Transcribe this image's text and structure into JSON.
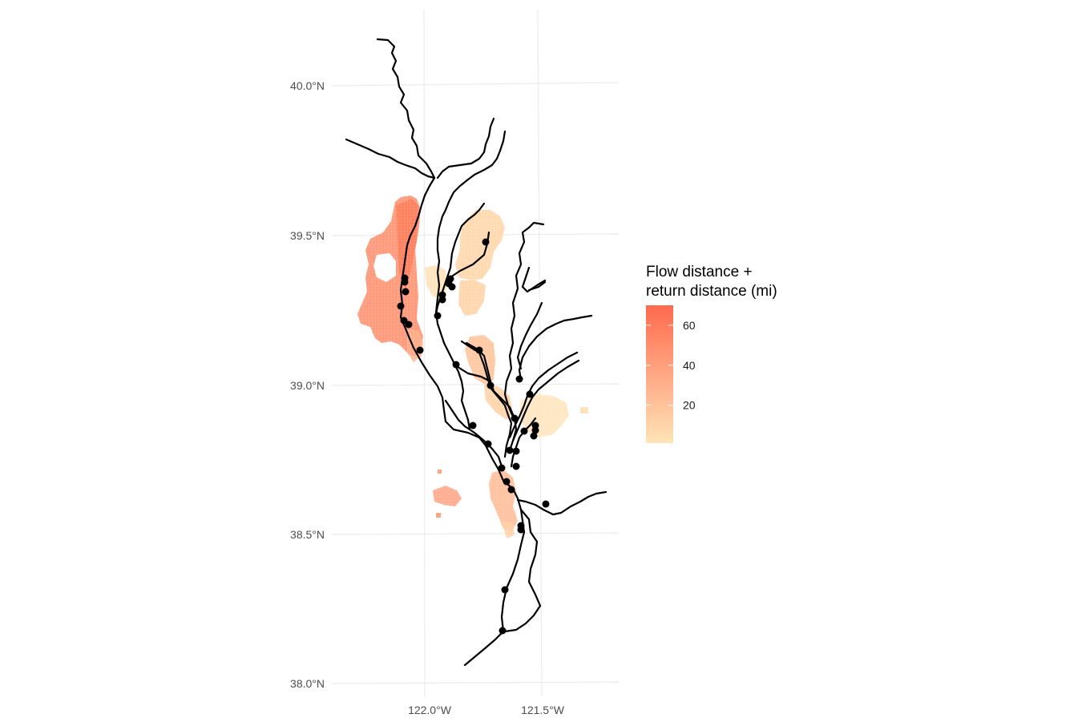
{
  "axes": {
    "y_ticks": [
      {
        "value": 40.0,
        "label": "40.0°N"
      },
      {
        "value": 39.5,
        "label": "39.5°N"
      },
      {
        "value": 39.0,
        "label": "39.0°N"
      },
      {
        "value": 38.5,
        "label": "38.5°N"
      },
      {
        "value": 38.0,
        "label": "38.0°N"
      }
    ],
    "x_ticks": [
      {
        "value": -122.0,
        "label": "122.0°W"
      },
      {
        "value": -121.5,
        "label": "121.5°W"
      }
    ],
    "grid": true
  },
  "legend": {
    "title_line1": "Flow distance +",
    "title_line2": "return distance (mi)",
    "ticks": [
      {
        "value": 60,
        "label": "60"
      },
      {
        "value": 40,
        "label": "40"
      },
      {
        "value": 20,
        "label": "20"
      }
    ],
    "range": [
      1,
      70
    ],
    "color_low": "#ffe4b8",
    "color_high": "#ff6a4d",
    "placement": "right"
  },
  "colors": {
    "grid": "#ebebeb",
    "river": "#000000",
    "diversion_point": "#000000"
  }
}
